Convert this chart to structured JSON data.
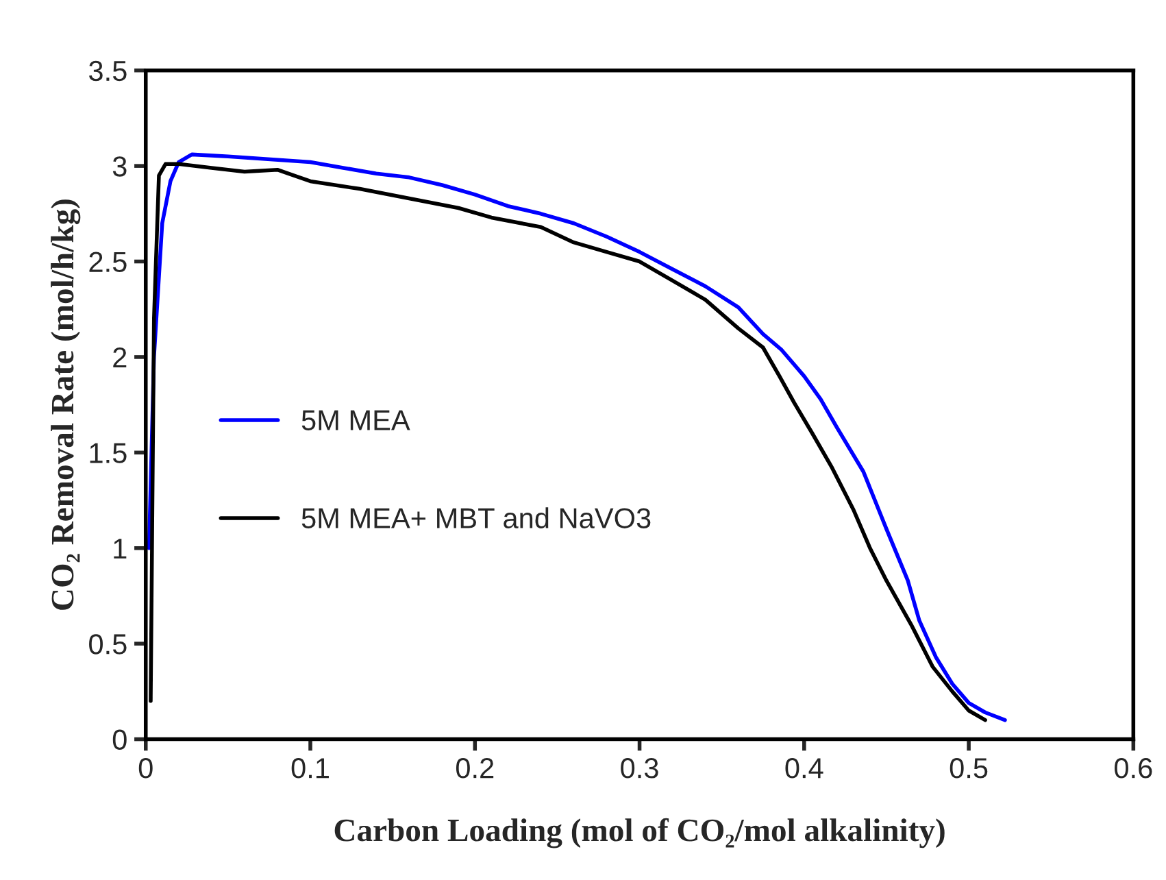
{
  "chart_data": {
    "type": "line",
    "xlabel": "Carbon Loading (mol of CO₂/mol alkalinity)",
    "ylabel": "CO₂ Removal Rate (mol/h/kg)",
    "xlim": [
      0,
      0.6
    ],
    "xticks": [
      0,
      0.1,
      0.2,
      0.3,
      0.4,
      0.5,
      0.6
    ],
    "ylim": [
      0,
      3.5
    ],
    "yticks": [
      0,
      0.5,
      1,
      1.5,
      2,
      2.5,
      3,
      3.5
    ],
    "grid": false,
    "legend": "left",
    "marker": "none",
    "line_style": "solid",
    "series": [
      {
        "name": "5M MEA",
        "color": "#0000ff",
        "x": [
          0.002,
          0.005,
          0.01,
          0.015,
          0.02,
          0.028,
          0.05,
          0.1,
          0.12,
          0.14,
          0.16,
          0.18,
          0.2,
          0.22,
          0.24,
          0.26,
          0.28,
          0.3,
          0.32,
          0.34,
          0.36,
          0.375,
          0.386,
          0.4,
          0.41,
          0.42,
          0.436,
          0.45,
          0.463,
          0.47,
          0.48,
          0.49,
          0.5,
          0.51,
          0.522
        ],
        "values": [
          1.0,
          2.0,
          2.7,
          2.92,
          3.02,
          3.06,
          3.05,
          3.02,
          2.99,
          2.96,
          2.94,
          2.9,
          2.85,
          2.79,
          2.75,
          2.7,
          2.63,
          2.55,
          2.46,
          2.37,
          2.26,
          2.12,
          2.04,
          1.9,
          1.78,
          1.63,
          1.4,
          1.1,
          0.83,
          0.62,
          0.43,
          0.29,
          0.19,
          0.14,
          0.1
        ]
      },
      {
        "name": "5M MEA+ MBT and NaVO3",
        "color": "#000000",
        "x": [
          0.003,
          0.005,
          0.008,
          0.012,
          0.02,
          0.04,
          0.06,
          0.08,
          0.1,
          0.13,
          0.16,
          0.19,
          0.21,
          0.24,
          0.26,
          0.28,
          0.3,
          0.32,
          0.34,
          0.36,
          0.375,
          0.385,
          0.394,
          0.405,
          0.417,
          0.43,
          0.44,
          0.45,
          0.465,
          0.478,
          0.49,
          0.5,
          0.51
        ],
        "values": [
          0.2,
          2.2,
          2.95,
          3.01,
          3.01,
          2.99,
          2.97,
          2.98,
          2.92,
          2.88,
          2.83,
          2.78,
          2.73,
          2.68,
          2.6,
          2.55,
          2.5,
          2.4,
          2.3,
          2.15,
          2.05,
          1.9,
          1.76,
          1.6,
          1.42,
          1.2,
          1.0,
          0.83,
          0.6,
          0.38,
          0.25,
          0.15,
          0.1
        ]
      }
    ]
  }
}
